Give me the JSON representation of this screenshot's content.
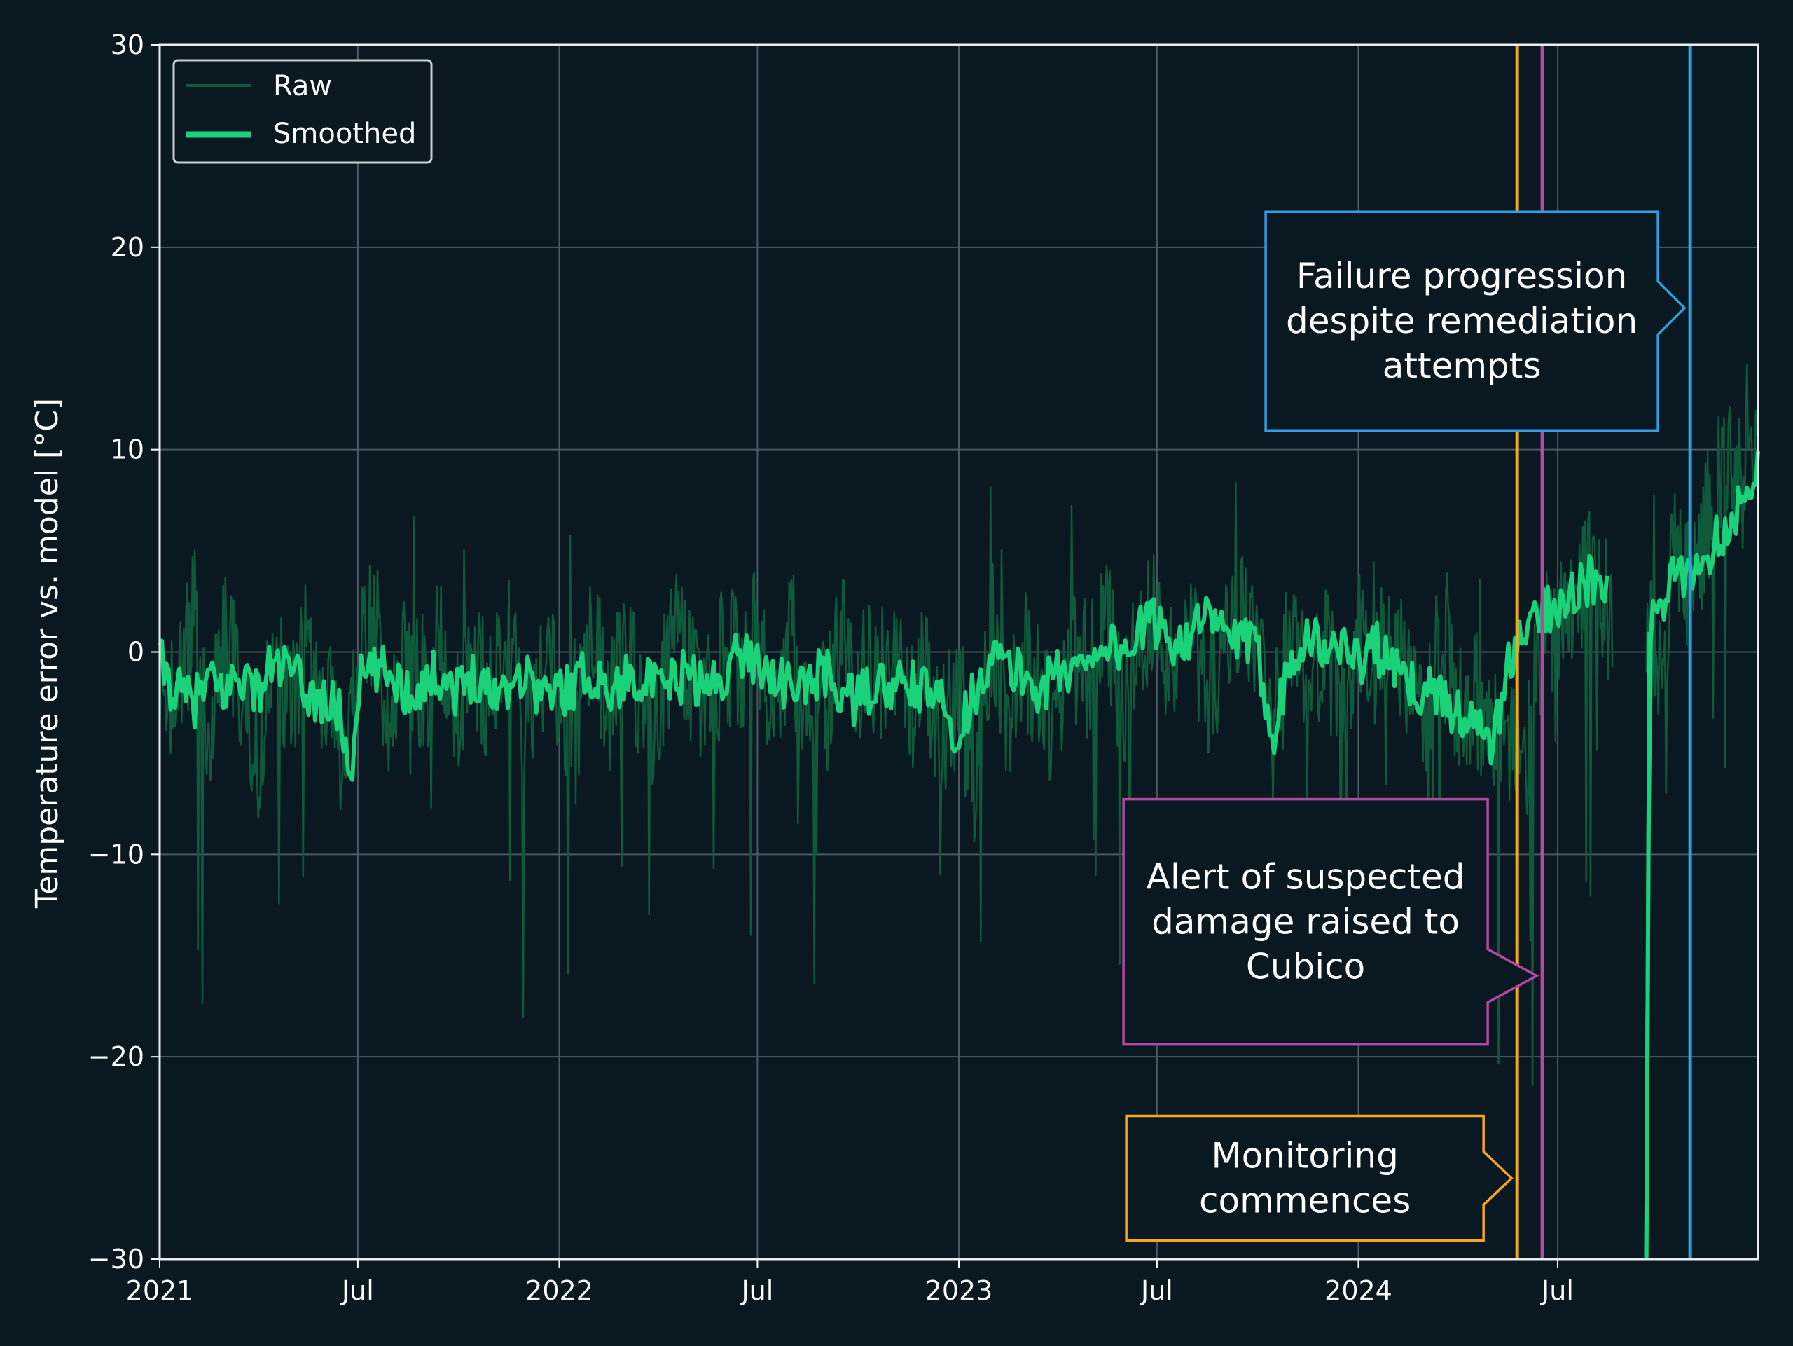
{
  "colors": {
    "background": "#0a1822",
    "grid": "#4a5862",
    "raw": "#0f5a3a",
    "smoothed": "#19d27a",
    "monitoring": "#f4a81d",
    "alert": "#b44aa0",
    "failure": "#2e9fe0"
  },
  "chart_data": {
    "type": "line",
    "ylabel": "Temperature error vs. model [°C]",
    "xlabel": "",
    "xlim": [
      "2021-01-01",
      "2024-12-31"
    ],
    "ylim": [
      -30,
      30
    ],
    "grid": true,
    "legend_position": "top-left",
    "x_ticks": [
      {
        "date": "2021-01-01",
        "label": "2021"
      },
      {
        "date": "2021-07-01",
        "label": "Jul"
      },
      {
        "date": "2022-01-01",
        "label": "2022"
      },
      {
        "date": "2022-07-01",
        "label": "Jul"
      },
      {
        "date": "2023-01-01",
        "label": "2023"
      },
      {
        "date": "2023-07-01",
        "label": "Jul"
      },
      {
        "date": "2024-01-01",
        "label": "2024"
      },
      {
        "date": "2024-07-01",
        "label": "Jul"
      }
    ],
    "y_ticks": [
      {
        "value": 30,
        "label": "30"
      },
      {
        "value": 20,
        "label": "20"
      },
      {
        "value": 10,
        "label": "10"
      },
      {
        "value": 0,
        "label": "0"
      },
      {
        "value": -10,
        "label": "−10"
      },
      {
        "value": -20,
        "label": "−20"
      },
      {
        "value": -30,
        "label": "−30"
      }
    ],
    "series": [
      {
        "name": "Raw",
        "style": "thin",
        "color": "#0f5a3a",
        "x": [
          "2021-01-01",
          "2021-01-15",
          "2021-02-01",
          "2021-02-15",
          "2021-03-01",
          "2021-03-15",
          "2021-04-01",
          "2021-04-15",
          "2021-05-01",
          "2021-05-15",
          "2021-06-01",
          "2021-06-15",
          "2021-07-01",
          "2021-07-15",
          "2021-08-01",
          "2021-08-15",
          "2021-09-01",
          "2021-09-15",
          "2021-10-01",
          "2021-10-15",
          "2021-11-01",
          "2021-11-15",
          "2021-12-01",
          "2021-12-15",
          "2022-01-01",
          "2022-01-15",
          "2022-02-01",
          "2022-02-15",
          "2022-03-01",
          "2022-03-15",
          "2022-04-01",
          "2022-04-15",
          "2022-05-01",
          "2022-05-15",
          "2022-06-01",
          "2022-06-15",
          "2022-07-01",
          "2022-07-15",
          "2022-08-01",
          "2022-08-15",
          "2022-09-01",
          "2022-09-15",
          "2022-10-01",
          "2022-10-15",
          "2022-11-01",
          "2022-11-15",
          "2022-12-01",
          "2022-12-15",
          "2023-01-01",
          "2023-01-15",
          "2023-02-01",
          "2023-02-15",
          "2023-03-01",
          "2023-03-15",
          "2023-04-01",
          "2023-04-15",
          "2023-05-01",
          "2023-05-15",
          "2023-06-01",
          "2023-06-15",
          "2023-07-01",
          "2023-07-15",
          "2023-08-01",
          "2023-08-15",
          "2023-09-01",
          "2023-09-15",
          "2023-10-01",
          "2023-10-15",
          "2023-11-01",
          "2023-11-15",
          "2023-12-01",
          "2023-12-15",
          "2024-01-01",
          "2024-01-15",
          "2024-02-01",
          "2024-02-15",
          "2024-03-01",
          "2024-03-15",
          "2024-04-01",
          "2024-04-15",
          "2024-05-01",
          "2024-05-15",
          "2024-06-01",
          "2024-06-15",
          "2024-07-01",
          "2024-07-15",
          "2024-08-01",
          "2024-08-15",
          "2024-09-01",
          "2024-09-15",
          "2024-10-01",
          "2024-10-15",
          "2024-11-01",
          "2024-11-15",
          "2024-12-01",
          "2024-12-15",
          "2024-12-31"
        ],
        "y": [
          -1.5,
          -3,
          2,
          -4,
          1,
          -2,
          -5,
          0,
          -3,
          1,
          -2,
          -5,
          -1,
          2,
          -4,
          0,
          -2,
          1,
          -3,
          -1,
          -2,
          2,
          -4,
          -1,
          -2,
          -5,
          1,
          -3,
          0,
          -2,
          -4,
          1,
          -1,
          -3,
          0,
          -1,
          1,
          -4,
          0,
          -2,
          -3,
          1,
          -1,
          -2,
          0,
          -3,
          -1,
          -4,
          -2,
          -6,
          1,
          -3,
          0,
          -2,
          -4,
          0,
          -1,
          2,
          -3,
          1,
          2,
          -1,
          1,
          -2,
          0,
          2,
          -1,
          -4,
          1,
          -2,
          0,
          -3,
          1,
          -1,
          2,
          -2,
          -4,
          1,
          -3,
          -2,
          -5,
          -3,
          -6,
          0,
          2,
          3,
          4,
          2,
          1,
          3,
          -2,
          5,
          3,
          7,
          9,
          8,
          10
        ],
        "gaps": [
          [
            "2024-08-20",
            "2024-09-20"
          ]
        ]
      },
      {
        "name": "Smoothed",
        "style": "thick",
        "color": "#19d27a",
        "x": [
          "2021-01-01",
          "2021-01-15",
          "2021-02-01",
          "2021-02-15",
          "2021-03-01",
          "2021-03-15",
          "2021-04-01",
          "2021-04-15",
          "2021-05-01",
          "2021-05-15",
          "2021-06-01",
          "2021-06-15",
          "2021-06-25",
          "2021-07-01",
          "2021-07-15",
          "2021-08-01",
          "2021-08-15",
          "2021-09-01",
          "2021-09-15",
          "2021-10-01",
          "2021-10-15",
          "2021-11-01",
          "2021-11-15",
          "2021-12-01",
          "2021-12-15",
          "2022-01-01",
          "2022-01-15",
          "2022-02-01",
          "2022-02-15",
          "2022-03-01",
          "2022-03-15",
          "2022-04-01",
          "2022-04-15",
          "2022-05-01",
          "2022-05-15",
          "2022-06-01",
          "2022-06-15",
          "2022-07-01",
          "2022-07-15",
          "2022-08-01",
          "2022-08-15",
          "2022-09-01",
          "2022-09-15",
          "2022-10-01",
          "2022-10-15",
          "2022-11-01",
          "2022-11-15",
          "2022-12-01",
          "2022-12-15",
          "2023-01-01",
          "2023-01-15",
          "2023-02-01",
          "2023-02-15",
          "2023-03-01",
          "2023-03-15",
          "2023-04-01",
          "2023-04-15",
          "2023-05-01",
          "2023-05-15",
          "2023-06-01",
          "2023-06-15",
          "2023-07-01",
          "2023-07-15",
          "2023-08-01",
          "2023-08-15",
          "2023-09-01",
          "2023-09-15",
          "2023-10-01",
          "2023-10-15",
          "2023-11-01",
          "2023-11-15",
          "2023-12-01",
          "2023-12-15",
          "2024-01-01",
          "2024-01-15",
          "2024-02-01",
          "2024-02-15",
          "2024-03-01",
          "2024-03-15",
          "2024-04-01",
          "2024-04-15",
          "2024-05-01",
          "2024-05-15",
          "2024-06-01",
          "2024-06-15",
          "2024-07-01",
          "2024-07-15",
          "2024-08-01",
          "2024-08-15",
          "2024-09-20",
          "2024-09-23",
          "2024-10-01",
          "2024-10-15",
          "2024-11-01",
          "2024-11-15",
          "2024-12-01",
          "2024-12-15",
          "2024-12-31"
        ],
        "y": [
          -0.5,
          -2,
          -2.5,
          -1.5,
          -2,
          -1,
          -2,
          -0.5,
          -1,
          -2,
          -2.5,
          -3,
          -6.5,
          -1.5,
          -1,
          -1,
          -2,
          -1.5,
          -1,
          -2,
          -1,
          -2,
          -1.5,
          -1,
          -2,
          -2,
          -1.5,
          -1,
          -2,
          -1.5,
          -1,
          -2,
          -1.5,
          -1,
          -2,
          -1,
          0,
          -0.5,
          -1,
          -2,
          -1.5,
          -1,
          -2,
          -2.5,
          -1.5,
          -2,
          -1.5,
          -2,
          -2.5,
          -4,
          -2,
          0,
          -1,
          -1,
          -2,
          -1,
          -1,
          0,
          0.5,
          0,
          1,
          1.5,
          0.5,
          1,
          1.5,
          1,
          0.5,
          0,
          -4,
          0,
          1,
          0,
          0.5,
          -0.5,
          0.5,
          -1,
          -1.5,
          -2,
          -2,
          -3,
          -3.5,
          -5,
          -1,
          1,
          2,
          2.5,
          3,
          3.5,
          3,
          -30,
          1,
          2,
          3.5,
          4,
          5,
          6,
          7.5,
          9
        ]
      }
    ],
    "events": [
      {
        "name": "Monitoring",
        "date": "2024-05-25",
        "color": "#f4a81d",
        "label": [
          "Monitoring",
          "commences"
        ],
        "arrow_y": -26
      },
      {
        "name": "Alert",
        "date": "2024-06-17",
        "color": "#b44aa0",
        "label": [
          "Alert of suspected",
          "damage raised to",
          "Cubico"
        ],
        "arrow_y": -16
      },
      {
        "name": "Failure",
        "date": "2024-10-30",
        "color": "#2e9fe0",
        "label": [
          "Failure progression",
          "despite remediation",
          "attempts"
        ],
        "arrow_y": 17
      }
    ]
  }
}
